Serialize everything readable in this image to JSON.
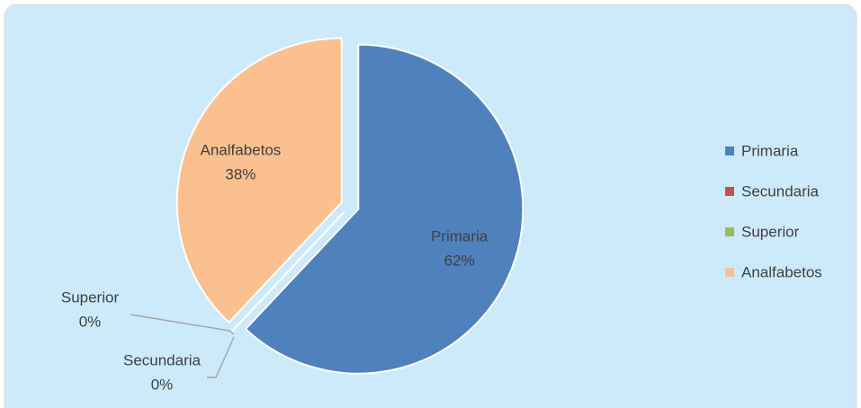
{
  "chart_data": {
    "type": "pie",
    "categories": [
      "Primaria",
      "Secundaria",
      "Superior",
      "Analfabetos"
    ],
    "values": [
      62,
      0,
      0,
      38
    ],
    "value_labels": [
      "62%",
      "0%",
      "0%",
      "38%"
    ],
    "colors": [
      "#4f81bd",
      "#c0504d",
      "#9bbb59",
      "#fac090"
    ],
    "legend": "right"
  }
}
